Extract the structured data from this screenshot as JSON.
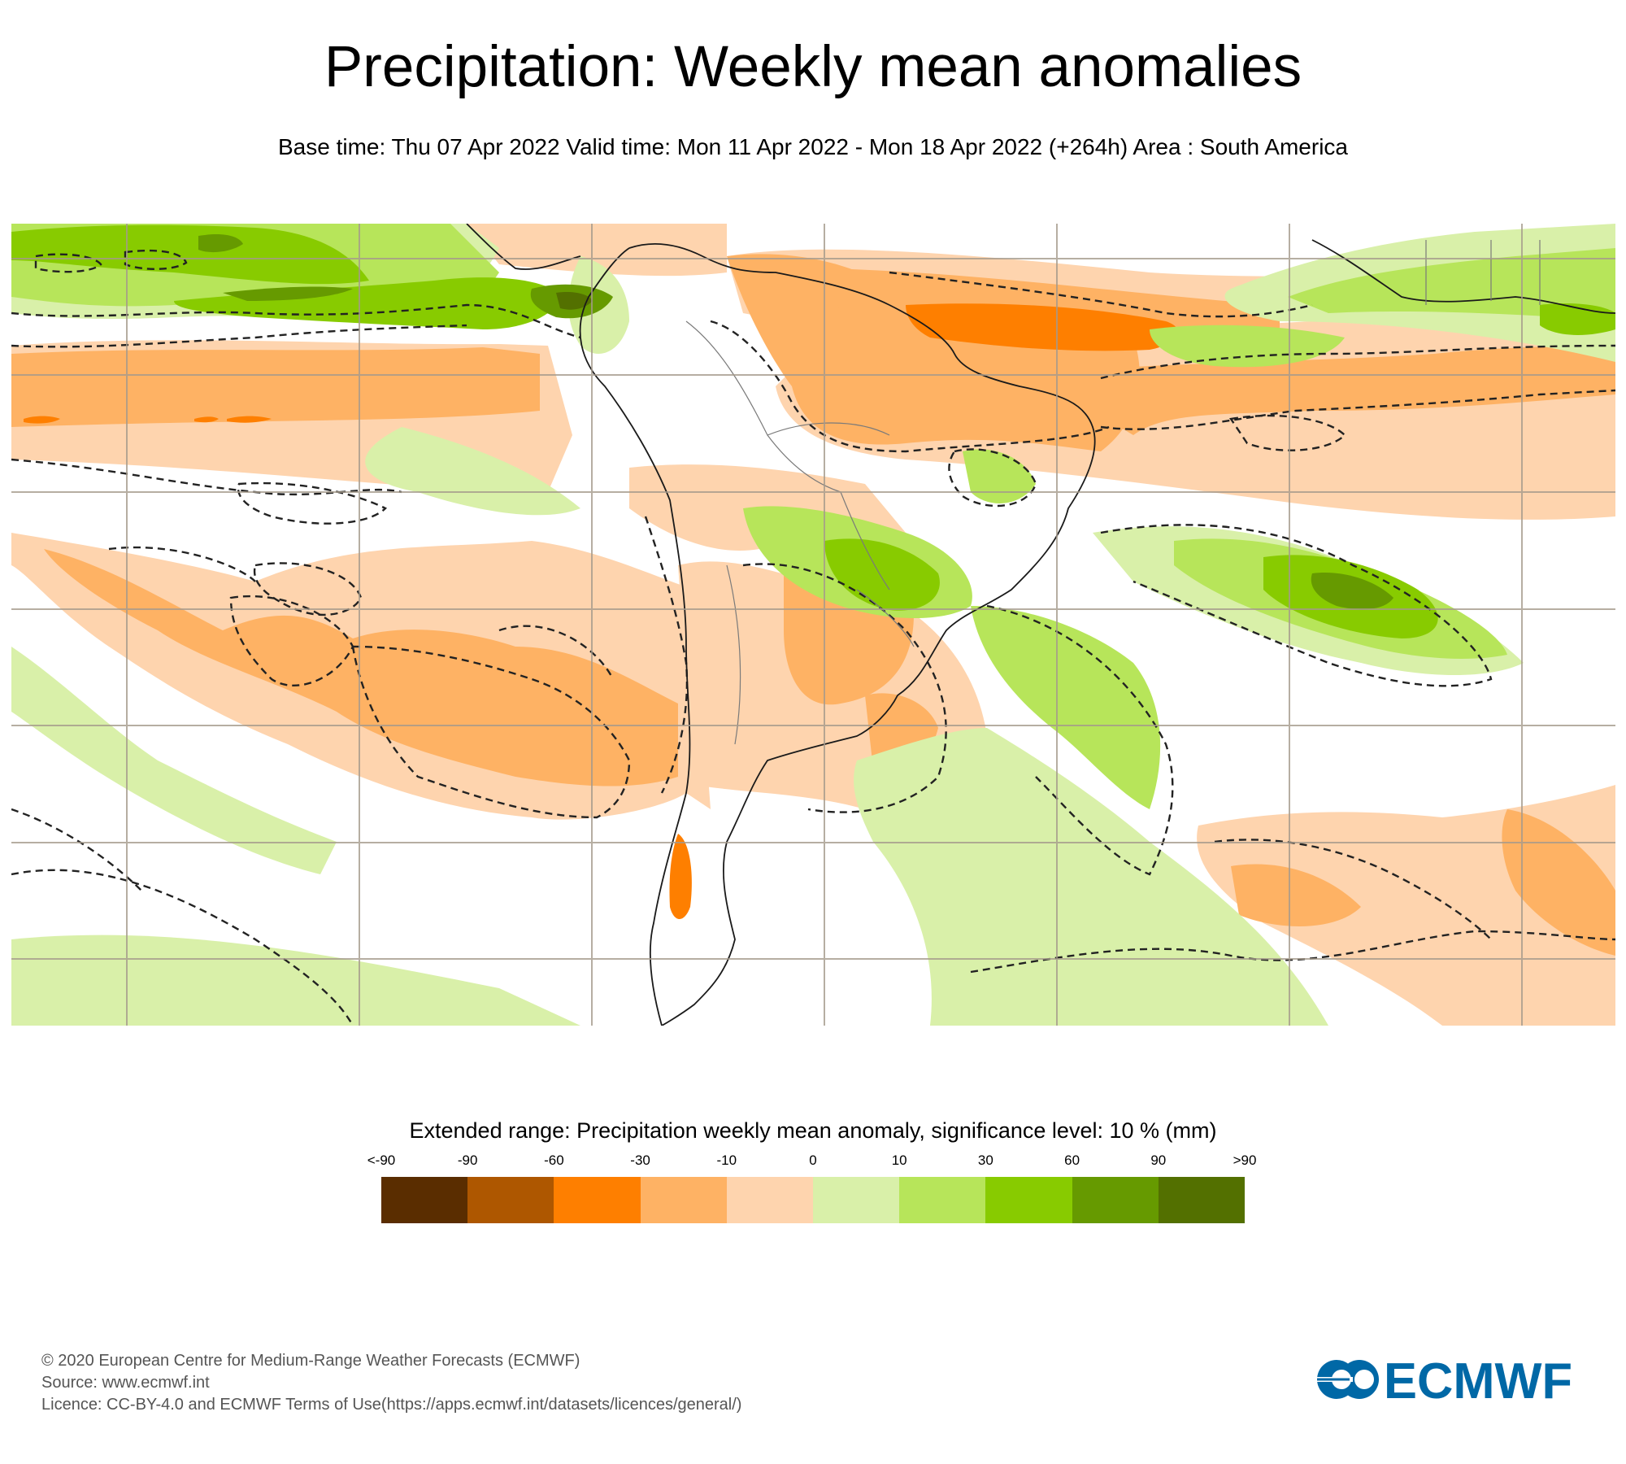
{
  "header": {
    "title": "Precipitation: Weekly mean anomalies",
    "subtitle": "Base time: Thu 07 Apr 2022 Valid time: Mon 11 Apr 2022 - Mon 18 Apr 2022 (+264h) Area : South America"
  },
  "map": {
    "area": "South America",
    "significance_contour": "dashed",
    "colors": {
      "grid": "#a59a8c",
      "coastline": "#1a1a1a",
      "border": "#7a7a7a",
      "contour": "#222222"
    }
  },
  "legend": {
    "title": "Extended range: Precipitation weekly mean anomaly, significance level: 10 % (mm)",
    "labels": [
      "<-90",
      "-90",
      "-60",
      "-30",
      "-10",
      "0",
      "10",
      "30",
      "60",
      "90",
      ">90"
    ],
    "colors": [
      "#5a2d00",
      "#ae5700",
      "#fe7f00",
      "#feb264",
      "#fed4ae",
      "#d9f0a9",
      "#b7e55a",
      "#88cb00",
      "#669a00",
      "#537000"
    ]
  },
  "footer": {
    "copyright": "© 2020 European Centre for Medium-Range Weather Forecasts (ECMWF)",
    "source": "Source: www.ecmwf.int",
    "licence": "Licence: CC-BY-4.0 and ECMWF Terms of Use(https://apps.ecmwf.int/datasets/licences/general/)"
  },
  "logo": {
    "text": "ECMWF",
    "color": "#0068a6"
  }
}
